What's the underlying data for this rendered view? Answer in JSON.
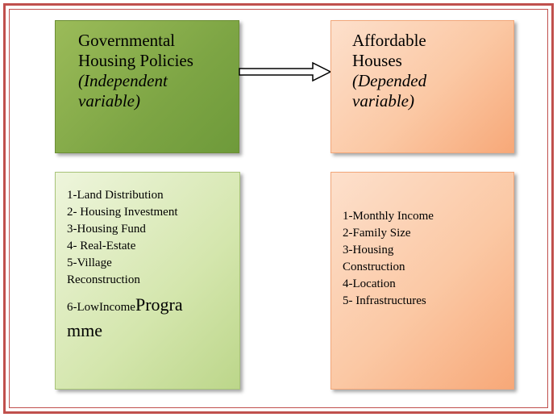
{
  "nodes": [
    {
      "title": "Governmental Housing Policies",
      "subtitle": "(Independent variable)"
    },
    {
      "title": "Affordable Houses",
      "subtitle": "(Depended variable)"
    }
  ],
  "lists": [
    {
      "items": [
        "1-Land Distribution",
        "2- Housing Investment",
        "3-Housing Fund",
        "4- Real-Estate",
        "5-Village Reconstruction",
        [
          "6-LowIncome",
          "Programme"
        ]
      ]
    },
    {
      "items": [
        "1-Monthly Income",
        "2-Family Size",
        "3-Housing Construction",
        "4-Location",
        "5- Infrastructures"
      ]
    }
  ]
}
